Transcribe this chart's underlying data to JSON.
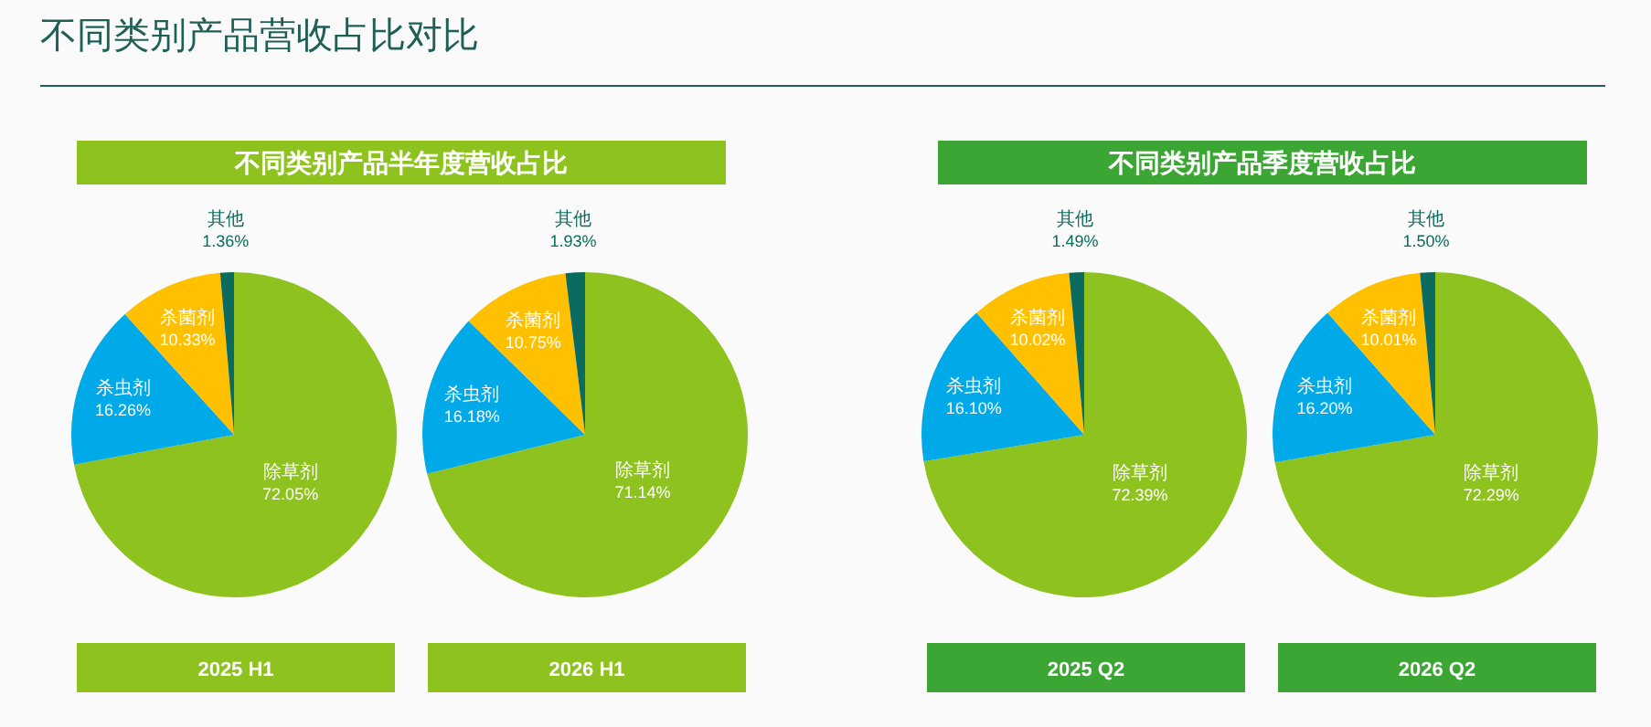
{
  "chart_data": [
    {
      "type": "pie",
      "title": "2025 H1",
      "subtitle": "不同类别产品半年度营收占比",
      "annotations": [
        "不同类别产品营收占比对比"
      ],
      "categories": [
        "除草剂",
        "杀虫剂",
        "杀菌剂",
        "其他"
      ],
      "values": [
        72.05,
        16.26,
        10.33,
        1.36
      ],
      "value_labels": [
        "72.05%",
        "16.26%",
        "10.33%",
        "1.36%"
      ],
      "colors": [
        "#8dc21f",
        "#00a9e8",
        "#ffc000",
        "#0b6b5e"
      ]
    },
    {
      "type": "pie",
      "title": "2026 H1",
      "categories": [
        "除草剂",
        "杀虫剂",
        "杀菌剂",
        "其他"
      ],
      "values": [
        71.14,
        16.18,
        10.75,
        1.93
      ],
      "value_labels": [
        "71.14%",
        "16.18%",
        "10.75%",
        "1.93%"
      ],
      "colors": [
        "#8dc21f",
        "#00a9e8",
        "#ffc000",
        "#0b6b5e"
      ]
    },
    {
      "type": "pie",
      "title": "2025 Q2",
      "subtitle": "不同类别产品季度营收占比",
      "categories": [
        "除草剂",
        "杀虫剂",
        "杀菌剂",
        "其他"
      ],
      "values": [
        72.39,
        16.1,
        10.02,
        1.49
      ],
      "value_labels": [
        "72.39%",
        "16.10%",
        "10.02%",
        "1.49%"
      ],
      "colors": [
        "#8dc21f",
        "#00a9e8",
        "#ffc000",
        "#0b6b5e"
      ]
    },
    {
      "type": "pie",
      "title": "2026 Q2",
      "categories": [
        "除草剂",
        "杀虫剂",
        "杀菌剂",
        "其他"
      ],
      "values": [
        72.29,
        16.2,
        10.01,
        1.5
      ],
      "value_labels": [
        "72.29%",
        "16.20%",
        "10.01%",
        "1.50%"
      ],
      "colors": [
        "#8dc21f",
        "#00a9e8",
        "#ffc000",
        "#0b6b5e"
      ]
    }
  ]
}
